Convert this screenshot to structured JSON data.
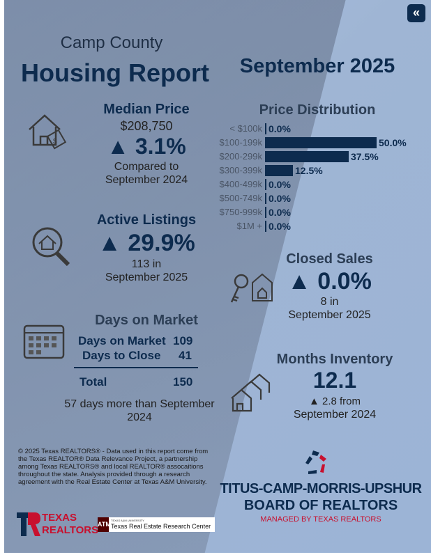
{
  "header": {
    "county": "Camp County",
    "title": "Housing Report",
    "period": "September 2025"
  },
  "median_price": {
    "title": "Median Price",
    "value": "$208,750",
    "change": "▲ 3.1%",
    "compare_line1": "Compared to",
    "compare_line2": "September 2024"
  },
  "active_listings": {
    "title": "Active Listings",
    "change": "▲ 29.9%",
    "line1": "113 in",
    "line2": "September 2025"
  },
  "days_on_market": {
    "title": "Days on Market",
    "rows": [
      {
        "label": "Days on Market",
        "value": "109"
      },
      {
        "label": "Days to Close",
        "value": "41"
      }
    ],
    "total_label": "Total",
    "total_value": "150",
    "note": "57 days more than September 2024"
  },
  "price_distribution": {
    "title": "Price Distribution",
    "chart_data": {
      "type": "bar",
      "orientation": "horizontal",
      "categories": [
        "< $100k",
        "$100-199k",
        "$200-299k",
        "$300-399k",
        "$400-499k",
        "$500-749k",
        "$750-999k",
        "$1M +"
      ],
      "values": [
        0.0,
        50.0,
        37.5,
        12.5,
        0.0,
        0.0,
        0.0,
        0.0
      ],
      "labels": [
        "0.0%",
        "50.0%",
        "37.5%",
        "12.5%",
        "0.0%",
        "0.0%",
        "0.0%",
        "0.0%"
      ]
    }
  },
  "closed_sales": {
    "title": "Closed Sales",
    "change": "▲ 0.0%",
    "line1": "8 in",
    "line2": "September 2025"
  },
  "months_inventory": {
    "title": "Months Inventory",
    "value": "12.1",
    "change": "▲ 2.8 from",
    "line2": "September 2024"
  },
  "footer": {
    "disclaimer": "© 2025 Texas REALTORS® - Data used in this report come from the Texas REALTOR® Data Relevance Project, a partnership among Texas REALTORS® and local REALTOR® assocaitions throughout the state. Analysis provided through a research agreement with the Real Estate Center at Texas A&M University.",
    "logo_tr": [
      "TEXAS",
      "REALTORS"
    ],
    "tamu_small": "TEXAS A&M UNIVERSITY",
    "tamu_name": "Texas Real Estate Research Center",
    "board_line1": "TITUS-CAMP-MORRIS-UPSHUR",
    "board_line2": "BOARD OF REALTORS",
    "board_line3": "MANAGED BY TEXAS REALTORS"
  },
  "nav": {
    "back_icon": "double-chevron-left-icon"
  },
  "colors": {
    "navy": "#0d2b4e",
    "red": "#c8102e"
  }
}
